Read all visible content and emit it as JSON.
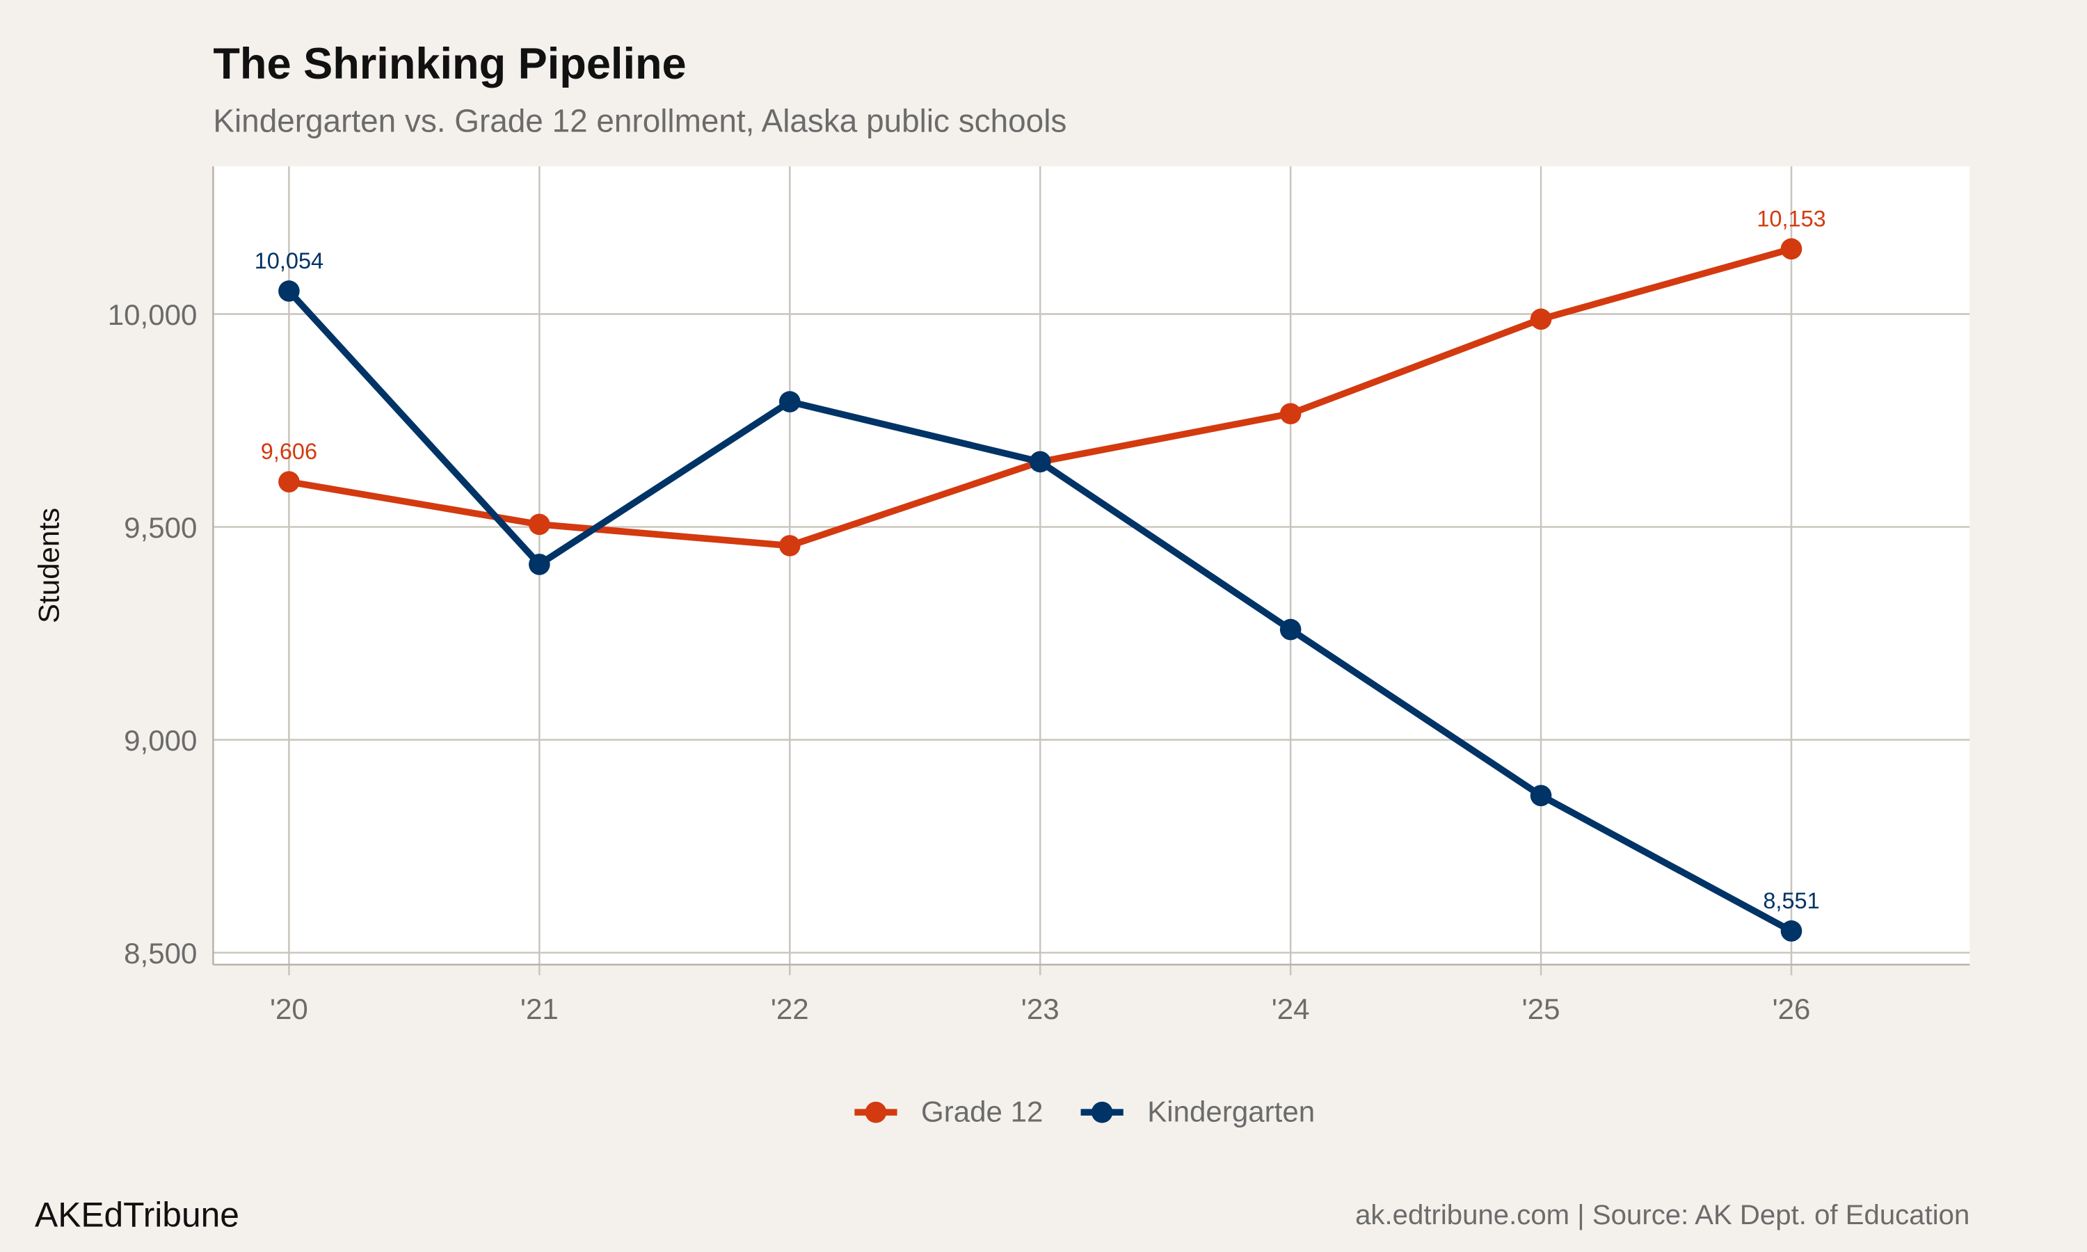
{
  "chart_data": {
    "type": "line",
    "title": "The Shrinking Pipeline",
    "subtitle": "Kindergarten vs. Grade 12 enrollment, Alaska public schools",
    "xlabel": "",
    "ylabel": "Students",
    "categories": [
      "'20",
      "'21",
      "'22",
      "'23",
      "'24",
      "'25",
      "'26"
    ],
    "yticks": [
      8500,
      9000,
      9500,
      10000
    ],
    "ytick_labels": [
      "8,500",
      "9,000",
      "9,500",
      "10,000"
    ],
    "ylim": [
      8472,
      10347
    ],
    "grid": true,
    "legend_position": "bottom",
    "series": [
      {
        "name": "Grade 12",
        "color": "#d33a0f",
        "values": [
          9606,
          9506,
          9456,
          9653,
          9766,
          9988,
          10153
        ],
        "labels": [
          {
            "index": 0,
            "text": "9,606"
          },
          {
            "index": 6,
            "text": "10,153"
          }
        ]
      },
      {
        "name": "Kindergarten",
        "color": "#003366",
        "values": [
          10054,
          9412,
          9794,
          9653,
          9259,
          8869,
          8551
        ],
        "labels": [
          {
            "index": 0,
            "text": "10,054"
          },
          {
            "index": 6,
            "text": "8,551"
          }
        ]
      }
    ]
  },
  "footer": {
    "brand": "AKEdTribune",
    "source": "ak.edtribune.com | Source: AK Dept. of Education"
  }
}
